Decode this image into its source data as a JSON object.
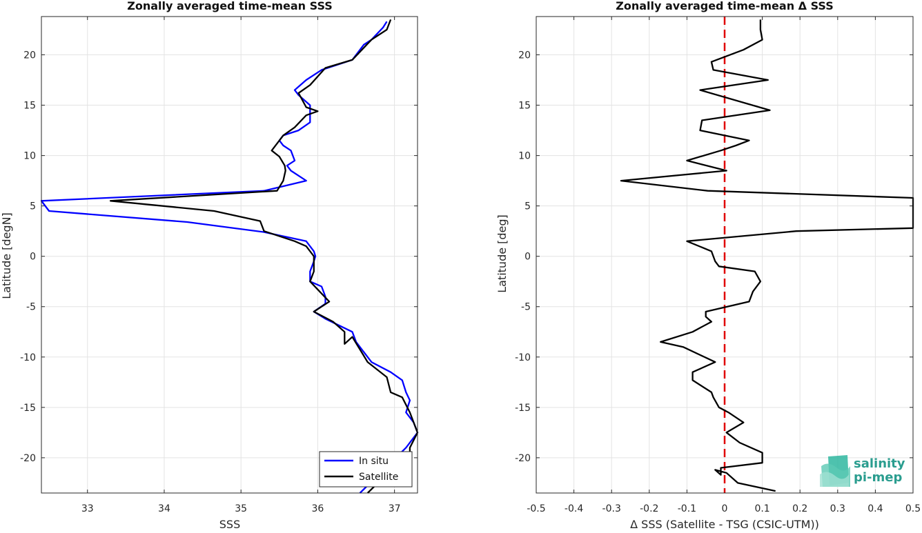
{
  "chart_data": [
    {
      "type": "line",
      "title": "Zonally averaged time-mean SSS",
      "xlabel": "SSS",
      "ylabel": "Latitude [degN]",
      "xlim": [
        32.4,
        37.3
      ],
      "ylim": [
        -23.5,
        23.8
      ],
      "xticks": [
        33,
        34,
        35,
        36,
        37
      ],
      "yticks": [
        -20,
        -15,
        -10,
        -5,
        0,
        5,
        10,
        15,
        20
      ],
      "grid": true,
      "legend_position": "bottom-right",
      "series": [
        {
          "name": "In situ",
          "color": "#0000ff",
          "points": [
            [
              36.9,
              23.3
            ],
            [
              36.85,
              22.7
            ],
            [
              36.7,
              21.5
            ],
            [
              36.6,
              21.0
            ],
            [
              36.45,
              19.5
            ],
            [
              36.05,
              18.5
            ],
            [
              35.85,
              17.5
            ],
            [
              35.7,
              16.5
            ],
            [
              35.75,
              16.0
            ],
            [
              35.9,
              15.0
            ],
            [
              35.9,
              14.0
            ],
            [
              35.9,
              13.3
            ],
            [
              35.75,
              12.5
            ],
            [
              35.55,
              12.0
            ],
            [
              35.5,
              11.5
            ],
            [
              35.55,
              11.0
            ],
            [
              35.65,
              10.5
            ],
            [
              35.7,
              9.5
            ],
            [
              35.6,
              9.0
            ],
            [
              35.65,
              8.5
            ],
            [
              35.85,
              7.5
            ],
            [
              35.3,
              6.5
            ],
            [
              32.4,
              5.5
            ],
            [
              32.5,
              4.5
            ],
            [
              34.3,
              3.4
            ],
            [
              35.3,
              2.4
            ],
            [
              35.85,
              1.5
            ],
            [
              35.95,
              0.5
            ],
            [
              35.97,
              0.0
            ],
            [
              35.95,
              -0.5
            ],
            [
              35.9,
              -1.5
            ],
            [
              35.9,
              -2.5
            ],
            [
              36.05,
              -3.0
            ],
            [
              36.1,
              -4.0
            ],
            [
              36.1,
              -4.7
            ],
            [
              35.95,
              -5.5
            ],
            [
              36.1,
              -6.2
            ],
            [
              36.45,
              -7.5
            ],
            [
              36.5,
              -8.5
            ],
            [
              36.6,
              -9.5
            ],
            [
              36.7,
              -10.5
            ],
            [
              36.95,
              -11.5
            ],
            [
              37.1,
              -12.3
            ],
            [
              37.15,
              -13.5
            ],
            [
              37.2,
              -14.3
            ],
            [
              37.15,
              -15.5
            ],
            [
              37.25,
              -16.5
            ],
            [
              37.3,
              -17.5
            ],
            [
              37.15,
              -19.0
            ],
            [
              36.75,
              -22.0
            ],
            [
              36.55,
              -23.5
            ]
          ]
        },
        {
          "name": "Satellite",
          "color": "#000000",
          "points": [
            [
              36.95,
              23.5
            ],
            [
              36.9,
              22.5
            ],
            [
              36.7,
              21.5
            ],
            [
              36.45,
              19.5
            ],
            [
              36.1,
              18.7
            ],
            [
              35.9,
              17.0
            ],
            [
              35.75,
              16.2
            ],
            [
              35.8,
              15.5
            ],
            [
              35.85,
              14.8
            ],
            [
              36.0,
              14.4
            ],
            [
              35.85,
              14.0
            ],
            [
              35.7,
              12.8
            ],
            [
              35.55,
              12.0
            ],
            [
              35.4,
              10.5
            ],
            [
              35.5,
              9.9
            ],
            [
              35.57,
              9.0
            ],
            [
              35.58,
              8.5
            ],
            [
              35.55,
              7.5
            ],
            [
              35.47,
              6.5
            ],
            [
              33.3,
              5.5
            ],
            [
              34.65,
              4.5
            ],
            [
              35.25,
              3.5
            ],
            [
              35.3,
              2.5
            ],
            [
              35.7,
              1.5
            ],
            [
              35.85,
              1.0
            ],
            [
              35.95,
              0.0
            ],
            [
              35.95,
              -1.5
            ],
            [
              35.9,
              -2.5
            ],
            [
              36.15,
              -4.5
            ],
            [
              35.95,
              -5.5
            ],
            [
              36.2,
              -6.5
            ],
            [
              36.35,
              -7.5
            ],
            [
              36.35,
              -8.7
            ],
            [
              36.45,
              -8.0
            ],
            [
              36.65,
              -10.5
            ],
            [
              36.9,
              -12.0
            ],
            [
              36.95,
              -13.5
            ],
            [
              37.1,
              -14.0
            ],
            [
              37.2,
              -15.5
            ],
            [
              37.3,
              -17.5
            ],
            [
              37.2,
              -19.0
            ],
            [
              37.2,
              -20.5
            ],
            [
              36.85,
              -22.0
            ],
            [
              36.65,
              -23.5
            ]
          ]
        }
      ]
    },
    {
      "type": "line",
      "title": "Zonally averaged time-mean Δ SSS",
      "xlabel": "Δ SSS (Satellite - TSG (CSIC-UTM))",
      "ylabel": "Latitude [deg]",
      "xlim": [
        -0.5,
        0.5
      ],
      "ylim": [
        -23.5,
        23.8
      ],
      "xticks": [
        -0.5,
        -0.4,
        -0.3,
        -0.2,
        -0.1,
        0,
        0.1,
        0.2,
        0.3,
        0.4,
        0.5
      ],
      "yticks": [
        -20,
        -15,
        -10,
        -5,
        0,
        5,
        10,
        15,
        20
      ],
      "grid": true,
      "reference_line": {
        "x": 0,
        "color": "#e00000",
        "style": "dashed"
      },
      "series": [
        {
          "name": "",
          "color": "#000000",
          "points": [
            [
              0.095,
              23.5
            ],
            [
              0.095,
              22.5
            ],
            [
              0.1,
              21.5
            ],
            [
              0.05,
              20.5
            ],
            [
              -0.035,
              19.3
            ],
            [
              -0.03,
              18.5
            ],
            [
              0.115,
              17.5
            ],
            [
              -0.065,
              16.5
            ],
            [
              0.12,
              14.5
            ],
            [
              -0.06,
              13.5
            ],
            [
              -0.065,
              12.5
            ],
            [
              0.065,
              11.5
            ],
            [
              0.03,
              11.0
            ],
            [
              -0.01,
              10.5
            ],
            [
              -0.1,
              9.5
            ],
            [
              0.005,
              8.5
            ],
            [
              -0.275,
              7.5
            ],
            [
              -0.045,
              6.5
            ],
            [
              0.5,
              5.8
            ],
            [
              0.5,
              2.8
            ],
            [
              0.19,
              2.5
            ],
            [
              -0.1,
              1.5
            ],
            [
              -0.035,
              0.5
            ],
            [
              -0.025,
              -0.5
            ],
            [
              -0.015,
              -1.0
            ],
            [
              0.08,
              -1.5
            ],
            [
              0.095,
              -2.5
            ],
            [
              0.075,
              -3.5
            ],
            [
              0.065,
              -4.5
            ],
            [
              -0.05,
              -5.5
            ],
            [
              -0.05,
              -6.0
            ],
            [
              -0.035,
              -6.5
            ],
            [
              -0.085,
              -7.5
            ],
            [
              -0.17,
              -8.5
            ],
            [
              -0.11,
              -9.0
            ],
            [
              -0.025,
              -10.5
            ],
            [
              -0.085,
              -11.5
            ],
            [
              -0.085,
              -12.3
            ],
            [
              -0.035,
              -13.5
            ],
            [
              -0.03,
              -14.0
            ],
            [
              -0.015,
              -15.0
            ],
            [
              0.01,
              -15.5
            ],
            [
              0.05,
              -16.5
            ],
            [
              0.005,
              -17.5
            ],
            [
              0.04,
              -18.5
            ],
            [
              0.1,
              -19.5
            ],
            [
              0.1,
              -20.5
            ],
            [
              -0.01,
              -21.0
            ],
            [
              -0.01,
              -21.7
            ],
            [
              -0.025,
              -21.2
            ],
            [
              0.005,
              -21.5
            ],
            [
              0.035,
              -22.5
            ],
            [
              0.135,
              -23.3
            ]
          ]
        }
      ]
    }
  ],
  "logo": {
    "line1": "salinity",
    "line2": "pi-mep"
  }
}
